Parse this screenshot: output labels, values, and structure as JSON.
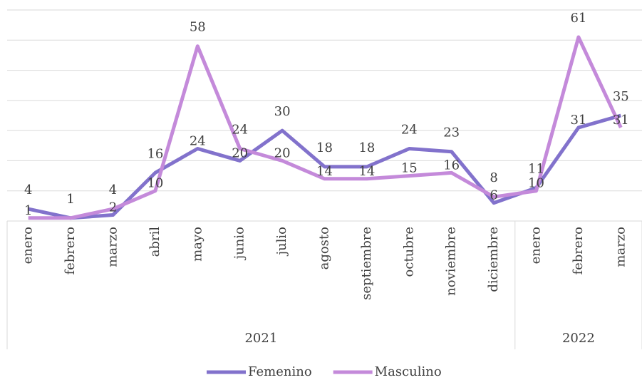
{
  "chart_data": {
    "type": "line",
    "groups": [
      {
        "name": "2021",
        "categories": [
          "enero",
          "febrero",
          "marzo",
          "abril",
          "mayo",
          "junio",
          "julio",
          "agosto",
          "septiembre",
          "octubre",
          "noviembre",
          "diciembre"
        ]
      },
      {
        "name": "2022",
        "categories": [
          "enero",
          "febrero",
          "marzo"
        ]
      }
    ],
    "series": [
      {
        "name": "Femenino",
        "color": "#8272cc",
        "values": [
          4,
          1,
          2,
          16,
          24,
          20,
          30,
          18,
          18,
          24,
          23,
          6,
          11,
          31,
          35
        ]
      },
      {
        "name": "Masculino",
        "color": "#c48ada",
        "values": [
          1,
          1,
          4,
          10,
          58,
          24,
          20,
          14,
          14,
          15,
          16,
          8,
          10,
          61,
          31
        ]
      }
    ],
    "ylim": [
      0,
      70
    ],
    "yticks": [
      0,
      10,
      20,
      30,
      40,
      50,
      60,
      70
    ],
    "grid": true,
    "legend": "bottom"
  }
}
